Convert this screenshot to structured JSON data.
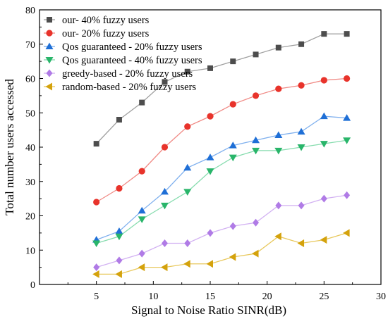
{
  "chart_data": {
    "type": "line",
    "title": "",
    "xlabel": "Signal to Noise Ratio SINR(dB)",
    "ylabel": "Total number users accessed",
    "xlim": [
      0,
      30
    ],
    "ylim": [
      0,
      80
    ],
    "xticks": [
      5,
      10,
      15,
      20,
      25,
      30
    ],
    "yticks": [
      0,
      10,
      20,
      30,
      40,
      50,
      60,
      70,
      80
    ],
    "grid": false,
    "legend_position": "top-left",
    "x": [
      5,
      7,
      9,
      11,
      13,
      15,
      17,
      19,
      21,
      23,
      25,
      27
    ],
    "series": [
      {
        "name": "our- 40% fuzzy users",
        "color": "#4d4d4d",
        "line_color": "#a0a0a0",
        "marker": "square",
        "values": [
          41,
          48,
          53,
          59,
          62,
          63,
          65,
          67,
          69,
          70,
          73,
          73
        ]
      },
      {
        "name": "our- 20% fuzzy users",
        "color": "#e8332b",
        "line_color": "#f08a85",
        "marker": "circle",
        "values": [
          24,
          28,
          33,
          40,
          46,
          49,
          52.5,
          55,
          57,
          58,
          59.5,
          60
        ]
      },
      {
        "name": "Qos guaranteed - 20% fuzzy users",
        "color": "#1f6fd6",
        "line_color": "#7fb0ee",
        "marker": "triangle-up",
        "values": [
          13,
          15.5,
          21.5,
          27,
          34,
          37,
          40.5,
          42,
          43.5,
          44.5,
          49,
          48.5
        ]
      },
      {
        "name": "Qos guaranteed - 40% fuzzy users",
        "color": "#29b56a",
        "line_color": "#86dcae",
        "marker": "triangle-down",
        "values": [
          12,
          14,
          19,
          23,
          27,
          33,
          37,
          39,
          39,
          40,
          41,
          42
        ]
      },
      {
        "name": "greedy-based - 20% fuzzy users",
        "color": "#b07be6",
        "line_color": "#d2b1f2",
        "marker": "diamond",
        "values": [
          5,
          7,
          9,
          12,
          12,
          15,
          17,
          18,
          23,
          23,
          25,
          26
        ]
      },
      {
        "name": "random-based - 20% fuzzy users",
        "color": "#d4a20c",
        "line_color": "#e8c85c",
        "marker": "triangle-left",
        "values": [
          3,
          3,
          5,
          5,
          6,
          6,
          8,
          9,
          14,
          12,
          13,
          15
        ]
      }
    ]
  }
}
